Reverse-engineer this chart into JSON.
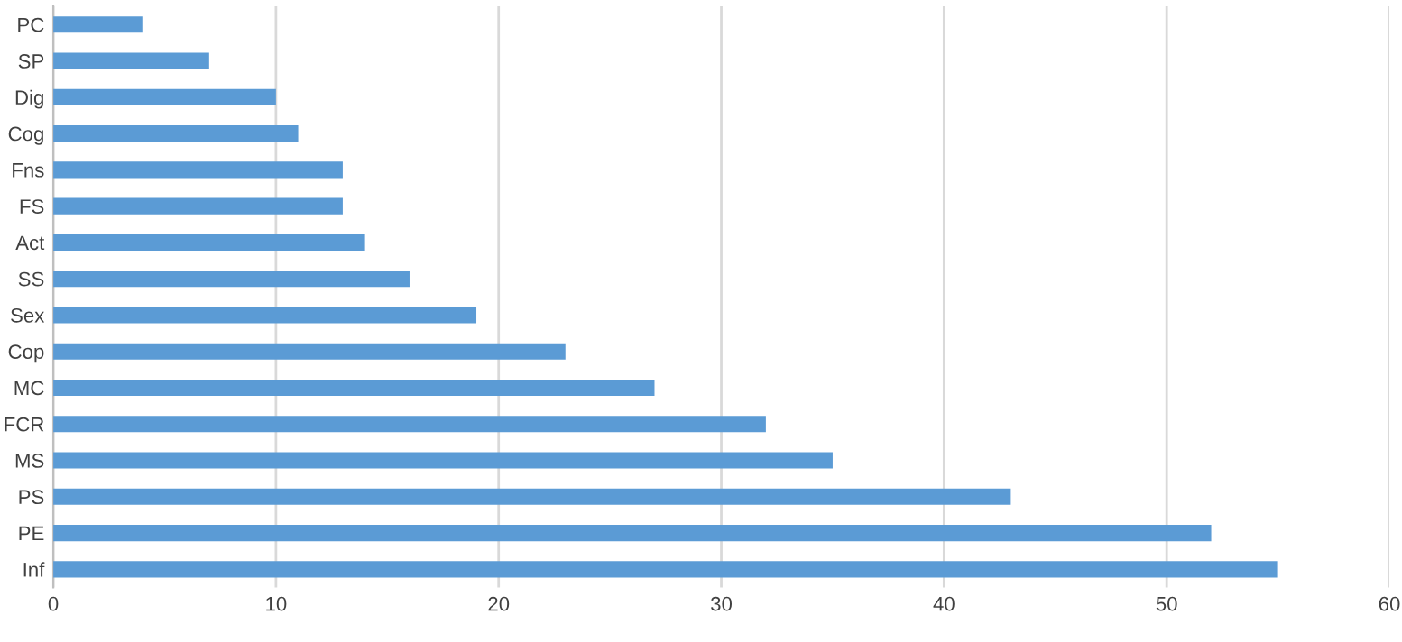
{
  "chart_data": {
    "type": "bar",
    "orientation": "horizontal",
    "categories": [
      "PC",
      "SP",
      "Dig",
      "Cog",
      "Fns",
      "FS",
      "Act",
      "SS",
      "Sex",
      "Cop",
      "MC",
      "FCR",
      "MS",
      "PS",
      "PE",
      "Inf"
    ],
    "values": [
      4,
      7,
      10,
      11,
      13,
      13,
      14,
      16,
      19,
      23,
      27,
      32,
      35,
      43,
      52,
      55
    ],
    "color": "#5b9bd5",
    "xlim": [
      0,
      60
    ],
    "xticks": [
      0,
      10,
      20,
      30,
      40,
      50,
      60
    ],
    "grid": "x",
    "legend": false
  }
}
